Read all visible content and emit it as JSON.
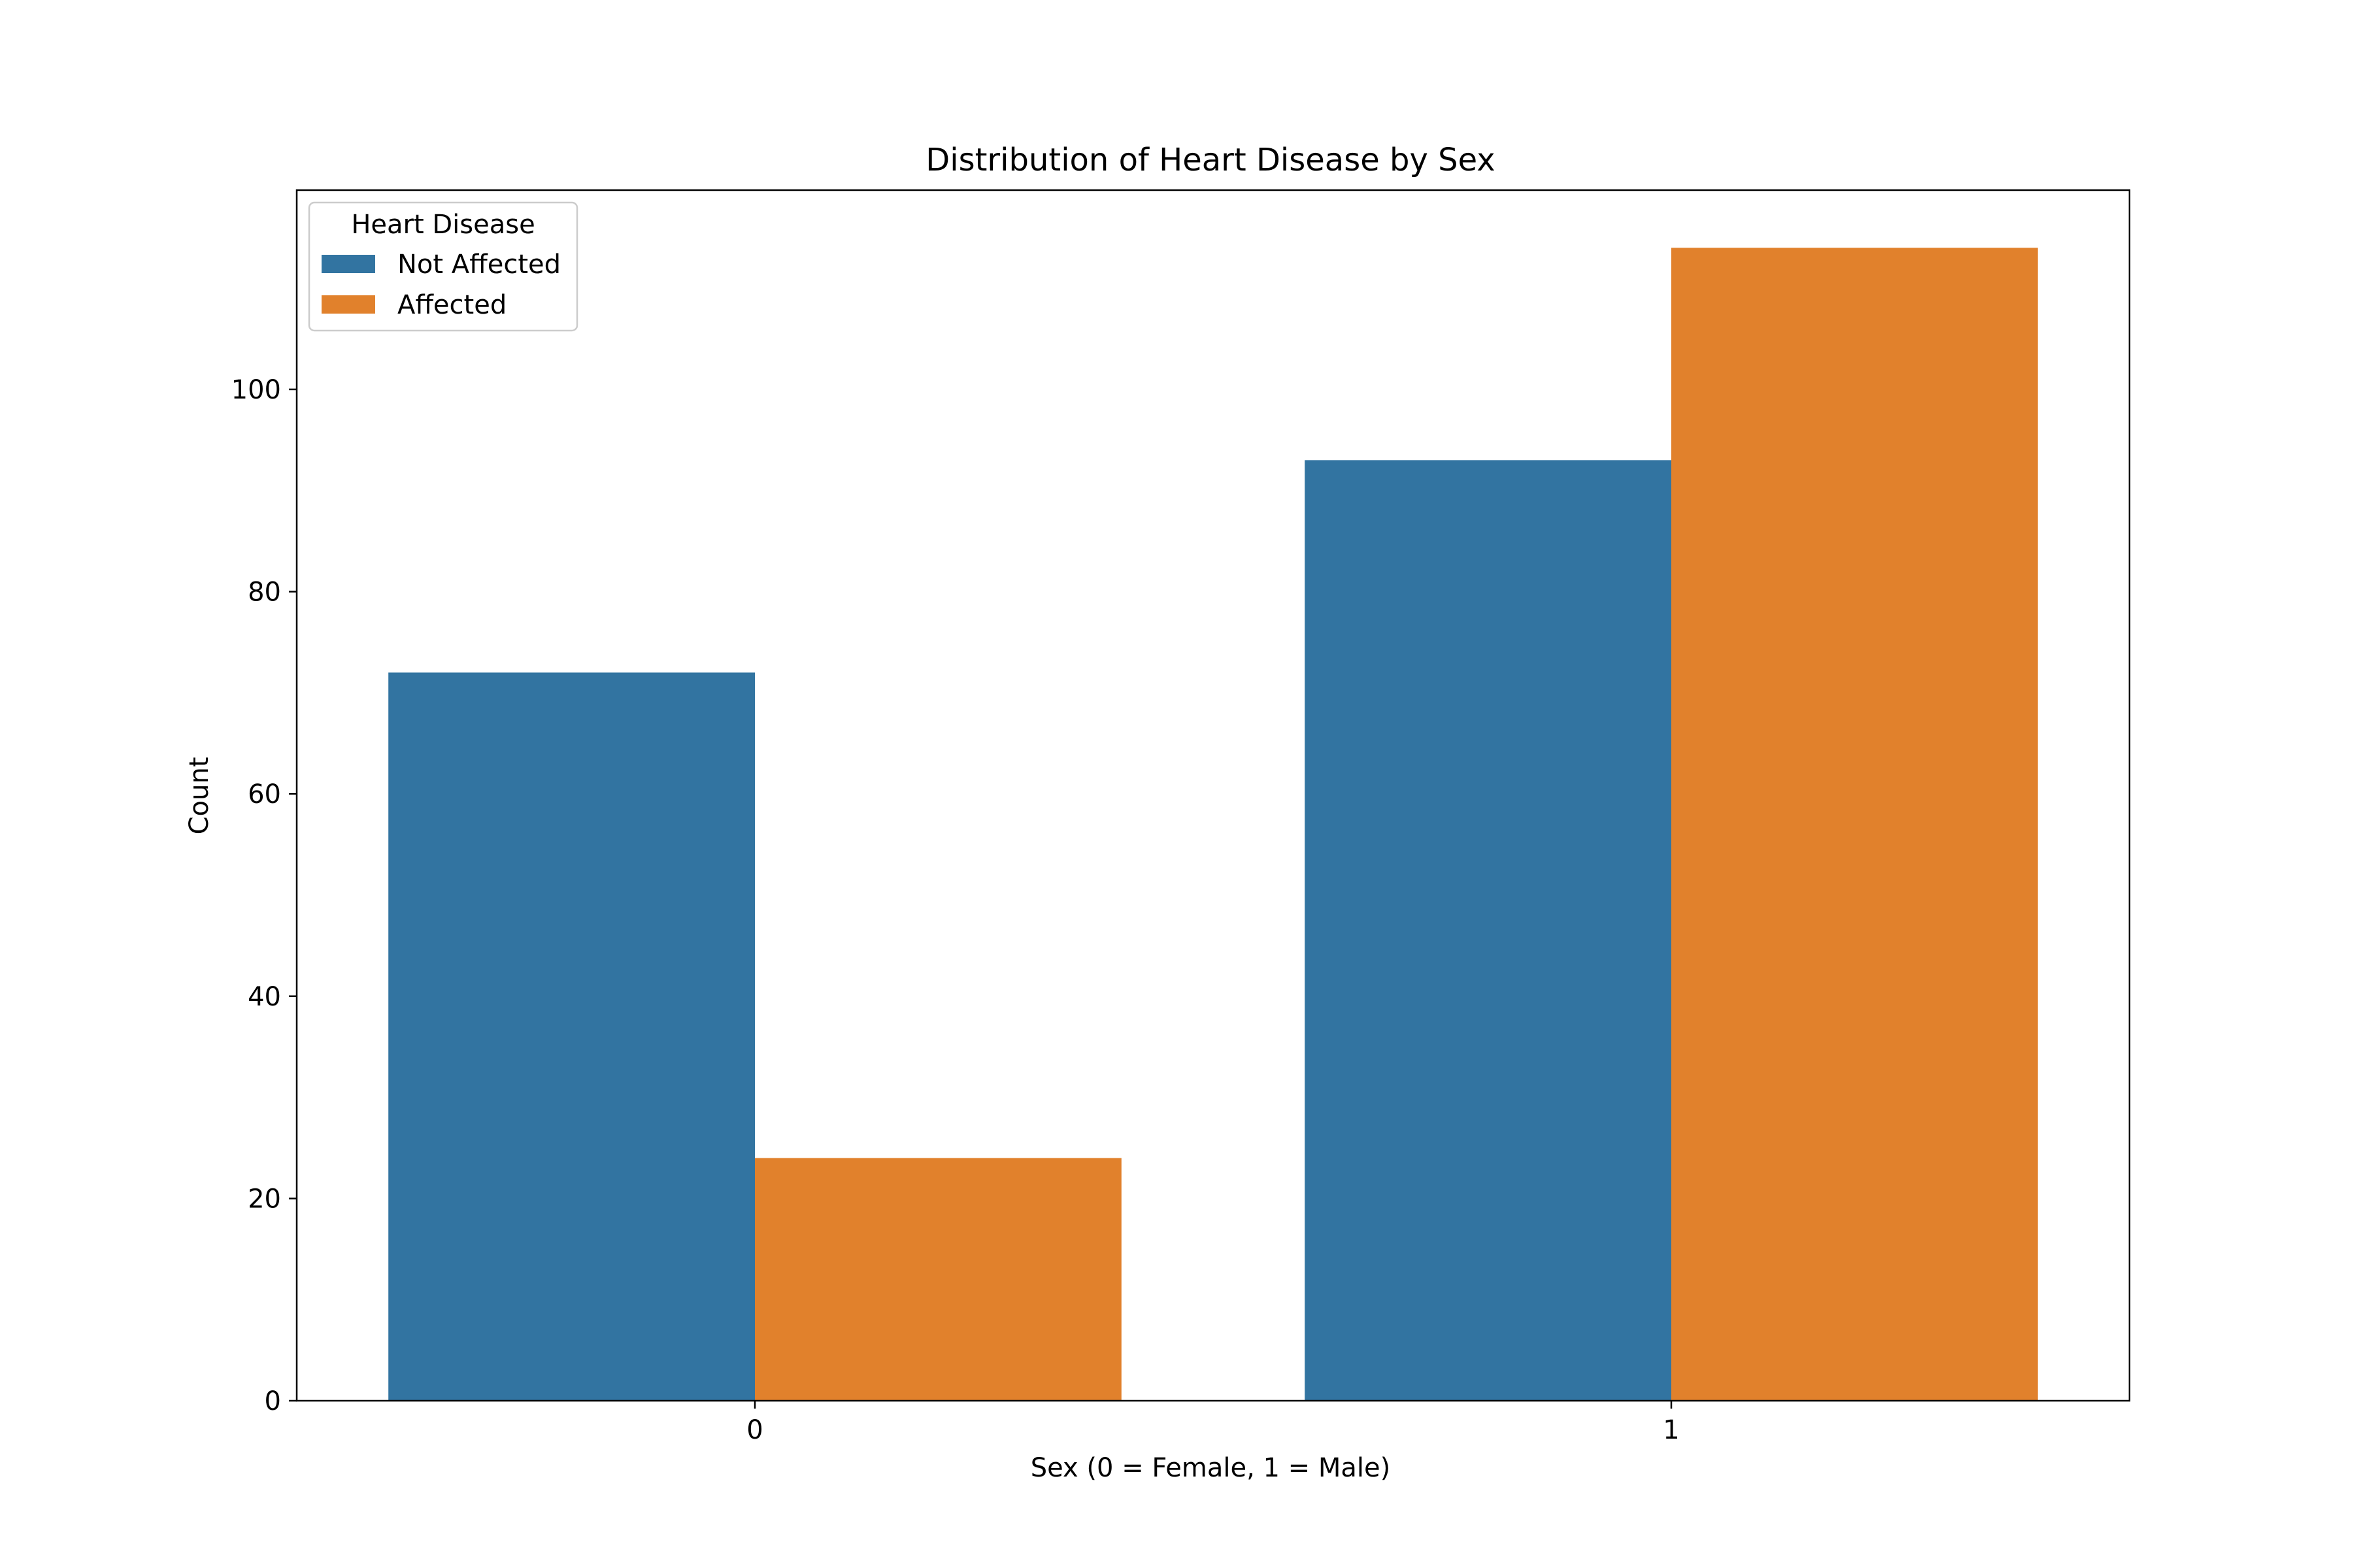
{
  "chart_data": {
    "type": "bar",
    "title": "Distribution of Heart Disease by Sex",
    "xlabel": "Sex (0 = Female, 1 = Male)",
    "ylabel": "Count",
    "categories": [
      "0",
      "1"
    ],
    "series": [
      {
        "name": "Not Affected",
        "color": "#3274a1",
        "values": [
          72,
          93
        ]
      },
      {
        "name": "Affected",
        "color": "#e1812c",
        "values": [
          24,
          114
        ]
      }
    ],
    "ylim": [
      0,
      119.7
    ],
    "yticks": [
      0,
      20,
      40,
      60,
      80,
      100
    ],
    "grid": false,
    "legend": {
      "title": "Heart Disease",
      "position": "top-left"
    }
  }
}
